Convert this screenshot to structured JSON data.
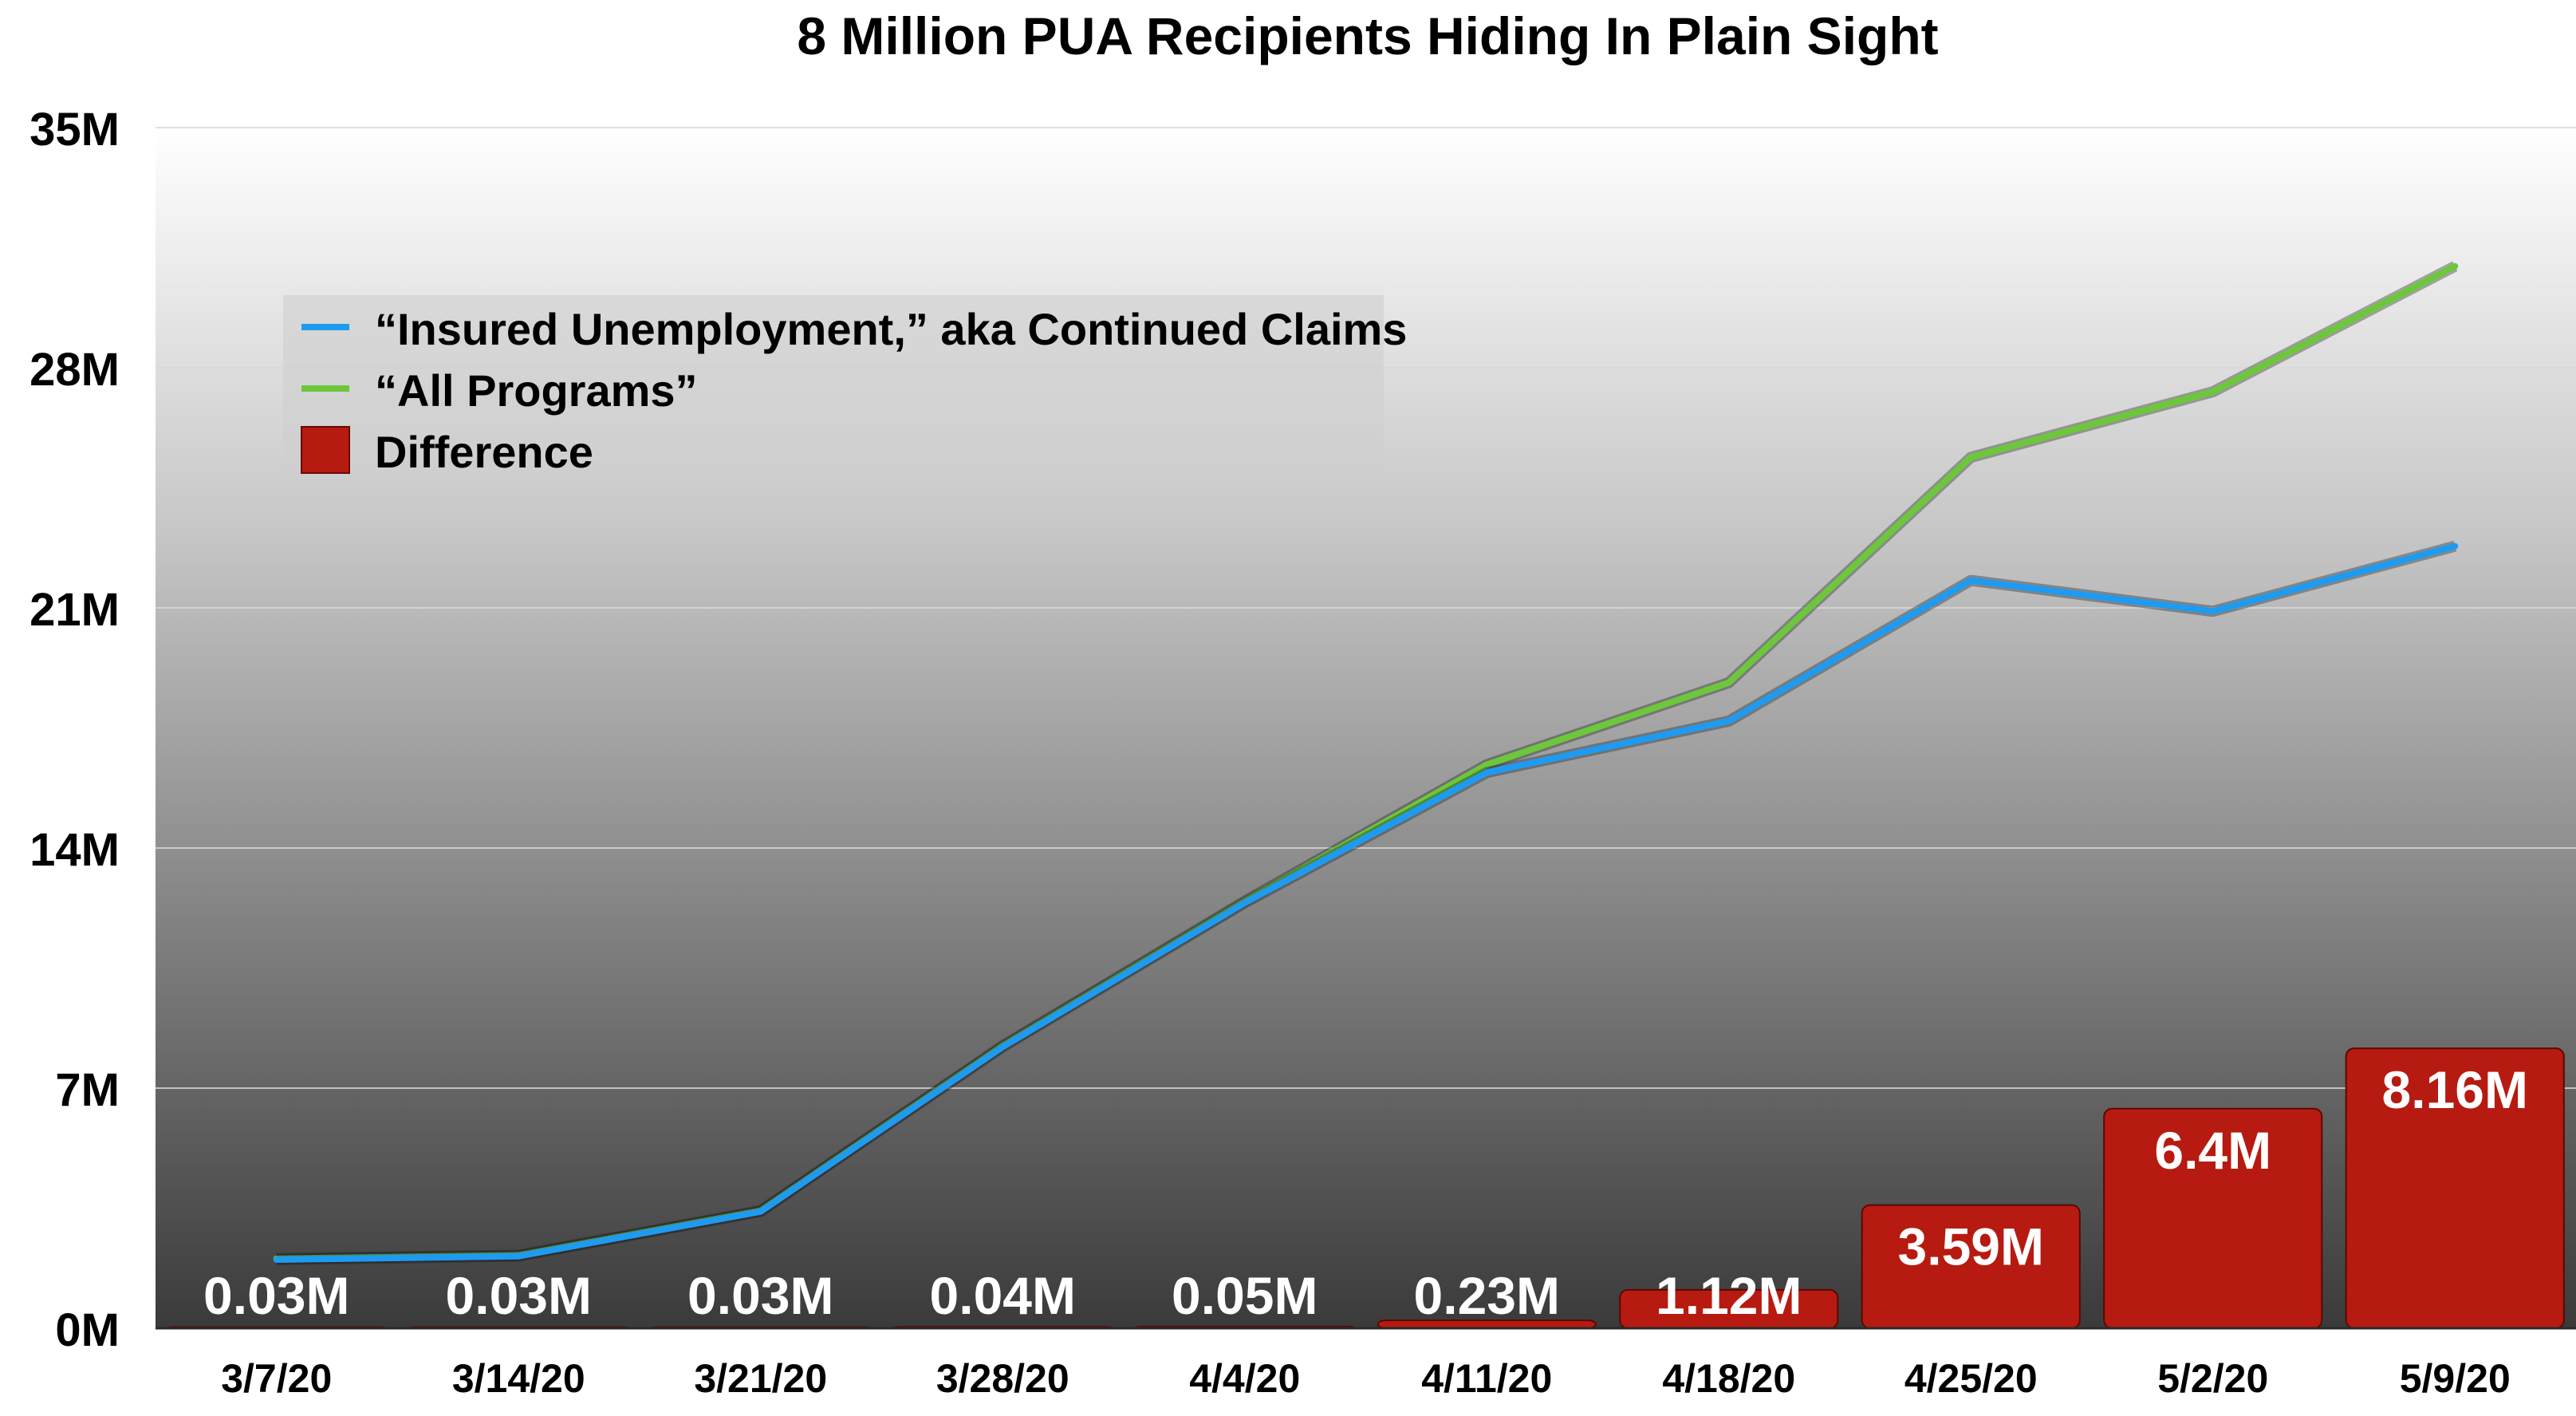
{
  "chart_data": {
    "type": "bar+line",
    "title": "8 Million PUA Recipients Hiding In Plain Sight",
    "xlabel": "",
    "ylabel": "",
    "categories": [
      "3/7/20",
      "3/14/20",
      "3/21/20",
      "3/28/20",
      "4/4/20",
      "4/11/20",
      "4/18/20",
      "4/25/20",
      "5/2/20",
      "5/9/20"
    ],
    "ylim": [
      0,
      35
    ],
    "yticks": [
      0,
      7,
      14,
      21,
      28,
      35
    ],
    "ytick_labels": [
      "0M",
      "7M",
      "14M",
      "21M",
      "28M",
      "35M"
    ],
    "grid": true,
    "legend_position": "top-left",
    "series": [
      {
        "name": "“Insured Unemployment,” aka Continued Claims",
        "type": "line",
        "color": "#1E9BF0",
        "values": [
          2.0,
          2.1,
          3.4,
          8.2,
          12.4,
          16.2,
          17.7,
          21.8,
          20.9,
          22.8
        ]
      },
      {
        "name": "“All Programs”",
        "type": "line",
        "color": "#6CC83A",
        "values": [
          2.03,
          2.13,
          3.43,
          8.24,
          12.45,
          16.43,
          18.82,
          25.39,
          27.3,
          30.96
        ]
      },
      {
        "name": "Difference",
        "type": "bar",
        "color": "#B71A10",
        "values": [
          0.03,
          0.03,
          0.03,
          0.04,
          0.05,
          0.23,
          1.12,
          3.59,
          6.4,
          8.16
        ],
        "labels": [
          "0.03M",
          "0.03M",
          "0.03M",
          "0.04M",
          "0.05M",
          "0.23M",
          "1.12M",
          "3.59M",
          "6.4M",
          "8.16M"
        ]
      }
    ]
  }
}
